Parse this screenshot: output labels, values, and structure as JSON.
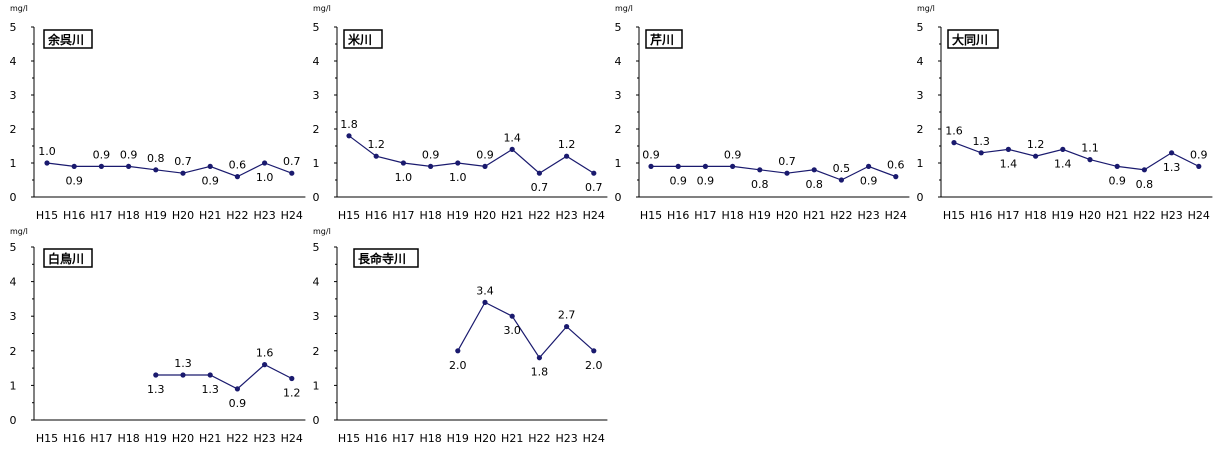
{
  "chart_data": [
    {
      "type": "line",
      "title": "余呉川",
      "unit": "mg/l",
      "ylim": [
        0,
        5
      ],
      "yticks": [
        "0",
        "1",
        "2",
        "3",
        "4",
        "5"
      ],
      "categories": [
        "H15",
        "H16",
        "H17",
        "H18",
        "H19",
        "H20",
        "H21",
        "H22",
        "H23",
        "H24"
      ],
      "values": [
        1.0,
        0.9,
        0.9,
        0.9,
        0.8,
        0.7,
        0.9,
        0.6,
        1.0,
        0.7
      ],
      "labels": [
        "1.0",
        "0.9",
        "0.9",
        "0.9",
        "0.8",
        "0.7",
        "0.9",
        "0.6",
        "1.0",
        "0.7"
      ],
      "label_pos": [
        "above",
        "below",
        "above",
        "above",
        "above",
        "above",
        "below",
        "above",
        "below",
        "above"
      ]
    },
    {
      "type": "line",
      "title": "米川",
      "unit": "mg/l",
      "ylim": [
        0,
        5
      ],
      "yticks": [
        "0",
        "1",
        "2",
        "3",
        "4",
        "5"
      ],
      "categories": [
        "H15",
        "H16",
        "H17",
        "H18",
        "H19",
        "H20",
        "H21",
        "H22",
        "H23",
        "H24"
      ],
      "values": [
        1.8,
        1.2,
        1.0,
        0.9,
        1.0,
        0.9,
        1.4,
        0.7,
        1.2,
        0.7
      ],
      "labels": [
        "1.8",
        "1.2",
        "1.0",
        "0.9",
        "1.0",
        "0.9",
        "1.4",
        "0.7",
        "1.2",
        "0.7"
      ],
      "label_pos": [
        "above",
        "above",
        "below",
        "above",
        "below",
        "above",
        "above",
        "below",
        "above",
        "below"
      ]
    },
    {
      "type": "line",
      "title": "芹川",
      "unit": "mg/l",
      "ylim": [
        0,
        5
      ],
      "yticks": [
        "0",
        "1",
        "2",
        "3",
        "4",
        "5"
      ],
      "categories": [
        "H15",
        "H16",
        "H17",
        "H18",
        "H19",
        "H20",
        "H21",
        "H22",
        "H23",
        "H24"
      ],
      "values": [
        0.9,
        0.9,
        0.9,
        0.9,
        0.8,
        0.7,
        0.8,
        0.5,
        0.9,
        0.6
      ],
      "labels": [
        "0.9",
        "0.9",
        "0.9",
        "0.9",
        "0.8",
        "0.7",
        "0.8",
        "0.5",
        "0.9",
        "0.6"
      ],
      "label_pos": [
        "above",
        "below",
        "below",
        "above",
        "below",
        "above",
        "below",
        "above",
        "below",
        "above"
      ]
    },
    {
      "type": "line",
      "title": "大同川",
      "unit": "mg/l",
      "ylim": [
        0,
        5
      ],
      "yticks": [
        "0",
        "1",
        "2",
        "3",
        "4",
        "5"
      ],
      "categories": [
        "H15",
        "H16",
        "H17",
        "H18",
        "H19",
        "H20",
        "H21",
        "H22",
        "H23",
        "H24"
      ],
      "values": [
        1.6,
        1.3,
        1.4,
        1.2,
        1.4,
        1.1,
        0.9,
        0.8,
        1.3,
        0.9
      ],
      "labels": [
        "1.6",
        "1.3",
        "1.4",
        "1.2",
        "1.4",
        "1.1",
        "0.9",
        "0.8",
        "1.3",
        "0.9"
      ],
      "label_pos": [
        "above",
        "above",
        "below",
        "above",
        "below",
        "above",
        "below",
        "below",
        "below",
        "above"
      ]
    },
    {
      "type": "line",
      "title": "白鳥川",
      "unit": "mg/l",
      "ylim": [
        0,
        5
      ],
      "yticks": [
        "0",
        "1",
        "2",
        "3",
        "4",
        "5"
      ],
      "categories": [
        "H15",
        "H16",
        "H17",
        "H18",
        "H19",
        "H20",
        "H21",
        "H22",
        "H23",
        "H24"
      ],
      "values": [
        null,
        null,
        null,
        null,
        1.3,
        1.3,
        1.3,
        0.9,
        1.6,
        1.2
      ],
      "labels": [
        null,
        null,
        null,
        null,
        "1.3",
        "1.3",
        "1.3",
        "0.9",
        "1.6",
        "1.2"
      ],
      "label_pos": [
        null,
        null,
        null,
        null,
        "below",
        "above",
        "below",
        "below",
        "above",
        "below"
      ]
    },
    {
      "type": "line",
      "title": "長命寺川",
      "unit": "mg/l",
      "ylim": [
        0,
        5
      ],
      "yticks": [
        "0",
        "1",
        "2",
        "3",
        "4",
        "5"
      ],
      "categories": [
        "H15",
        "H16",
        "H17",
        "H18",
        "H19",
        "H20",
        "H21",
        "H22",
        "H23",
        "H24"
      ],
      "values": [
        null,
        null,
        null,
        null,
        2.0,
        3.4,
        3.0,
        1.8,
        2.7,
        2.0
      ],
      "labels": [
        null,
        null,
        null,
        null,
        "2.0",
        "3.4",
        "3.0",
        "1.8",
        "2.7",
        "2.0"
      ],
      "label_pos": [
        null,
        null,
        null,
        null,
        "below",
        "above",
        "below",
        "below",
        "above",
        "below"
      ]
    }
  ],
  "style": {
    "line_color": "#1a1a6e",
    "marker_color": "#1a1a6e"
  }
}
